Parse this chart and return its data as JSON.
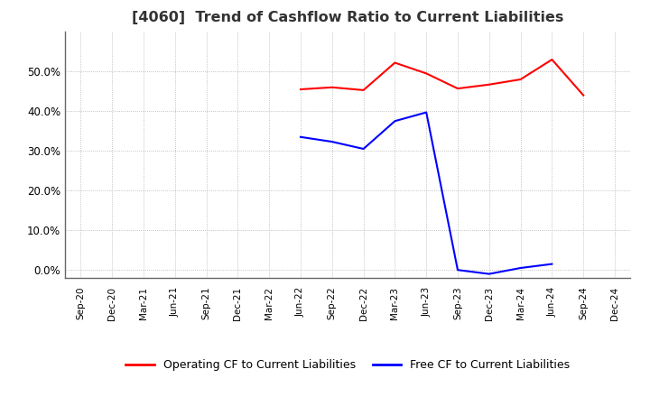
{
  "title": "[4060]  Trend of Cashflow Ratio to Current Liabilities",
  "x_labels": [
    "Sep-20",
    "Dec-20",
    "Mar-21",
    "Jun-21",
    "Sep-21",
    "Dec-21",
    "Mar-22",
    "Jun-22",
    "Sep-22",
    "Dec-22",
    "Mar-23",
    "Jun-23",
    "Sep-23",
    "Dec-23",
    "Mar-24",
    "Jun-24",
    "Sep-24",
    "Dec-24"
  ],
  "operating_cf": [
    null,
    null,
    null,
    null,
    null,
    null,
    null,
    0.455,
    0.46,
    0.453,
    0.522,
    0.495,
    0.457,
    0.467,
    0.48,
    0.53,
    0.44,
    null
  ],
  "free_cf_full": [
    null,
    null,
    null,
    null,
    null,
    null,
    null,
    0.335,
    0.323,
    0.305,
    0.375,
    0.397,
    0.0,
    -0.01,
    0.005,
    0.015,
    null,
    null
  ],
  "operating_color": "#ff0000",
  "free_color": "#0000ff",
  "background_color": "#ffffff",
  "ylim": [
    -0.02,
    0.6
  ],
  "yticks": [
    0.0,
    0.1,
    0.2,
    0.3,
    0.4,
    0.5
  ],
  "legend_op": "Operating CF to Current Liabilities",
  "legend_free": "Free CF to Current Liabilities"
}
